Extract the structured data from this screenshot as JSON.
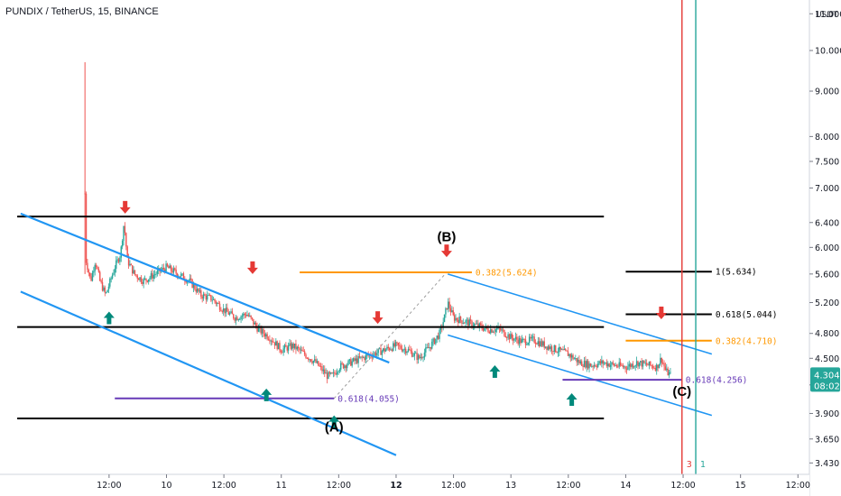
{
  "header": {
    "title": "PUNDIX / TetherUS, 15, BINANCE"
  },
  "axis": {
    "unit": "USDT"
  },
  "price_tag": {
    "value": "4.304",
    "countdown": "08:02",
    "color": "#26a69a"
  },
  "colors": {
    "level": "#000000",
    "channel": "#2196f3",
    "fib_orange": "#ff9800",
    "fib_purple": "#673ab7",
    "arrow_down": "#e53935",
    "arrow_up": "#00897b",
    "vline_red": "#e53935",
    "vline_teal": "#26a69a",
    "bull": "#26a69a",
    "bear": "#ef5350"
  },
  "chart_data": {
    "type": "candlestick",
    "symbol": "PUNDIX / TetherUS",
    "interval": "15",
    "exchange": "BINANCE",
    "yscale": "log",
    "ylim": [
      3.33,
      11.4
    ],
    "y_ticks": [
      "11.000",
      "10.000",
      "9.000",
      "8.000",
      "7.500",
      "7.000",
      "6.400",
      "6.000",
      "5.600",
      "5.200",
      "4.800",
      "4.500",
      "4.200",
      "3.900",
      "3.650",
      "3.430"
    ],
    "x_ticks": [
      {
        "label": "12:00",
        "t": 0.5,
        "bold": false
      },
      {
        "label": "10",
        "t": 1.0,
        "bold": false
      },
      {
        "label": "12:00",
        "t": 1.5,
        "bold": false
      },
      {
        "label": "11",
        "t": 2.0,
        "bold": false
      },
      {
        "label": "12:00",
        "t": 2.5,
        "bold": false
      },
      {
        "label": "12",
        "t": 3.0,
        "bold": true
      },
      {
        "label": "12:00",
        "t": 3.5,
        "bold": false
      },
      {
        "label": "13",
        "t": 4.0,
        "bold": false
      },
      {
        "label": "12:00",
        "t": 4.5,
        "bold": false
      },
      {
        "label": "14",
        "t": 5.0,
        "bold": false
      },
      {
        "label": "12:00",
        "t": 5.5,
        "bold": false
      },
      {
        "label": "15",
        "t": 6.0,
        "bold": false
      },
      {
        "label": "12:00",
        "t": 6.5,
        "bold": false
      }
    ],
    "xlim": [
      -0.45,
      6.6
    ],
    "price_path": [
      [
        0.29,
        6.9
      ],
      [
        0.3,
        5.8
      ],
      [
        0.34,
        5.5
      ],
      [
        0.38,
        5.8
      ],
      [
        0.42,
        5.5
      ],
      [
        0.47,
        5.3
      ],
      [
        0.55,
        5.7
      ],
      [
        0.6,
        5.9
      ],
      [
        0.63,
        6.4
      ],
      [
        0.66,
        5.8
      ],
      [
        0.72,
        5.6
      ],
      [
        0.8,
        5.5
      ],
      [
        0.9,
        5.6
      ],
      [
        1.0,
        5.7
      ],
      [
        1.1,
        5.6
      ],
      [
        1.2,
        5.5
      ],
      [
        1.3,
        5.3
      ],
      [
        1.4,
        5.25
      ],
      [
        1.5,
        5.1
      ],
      [
        1.6,
        5.0
      ],
      [
        1.7,
        5.05
      ],
      [
        1.75,
        4.95
      ],
      [
        1.8,
        4.85
      ],
      [
        1.9,
        4.75
      ],
      [
        2.0,
        4.6
      ],
      [
        2.1,
        4.65
      ],
      [
        2.2,
        4.55
      ],
      [
        2.3,
        4.45
      ],
      [
        2.4,
        4.3
      ],
      [
        2.45,
        4.3
      ],
      [
        2.5,
        4.4
      ],
      [
        2.6,
        4.45
      ],
      [
        2.7,
        4.5
      ],
      [
        2.8,
        4.55
      ],
      [
        2.9,
        4.6
      ],
      [
        3.0,
        4.65
      ],
      [
        3.05,
        4.62
      ],
      [
        3.1,
        4.6
      ],
      [
        3.15,
        4.55
      ],
      [
        3.2,
        4.5
      ],
      [
        3.3,
        4.65
      ],
      [
        3.38,
        4.8
      ],
      [
        3.42,
        5.0
      ],
      [
        3.45,
        5.2
      ],
      [
        3.5,
        5.0
      ],
      [
        3.6,
        4.95
      ],
      [
        3.7,
        4.9
      ],
      [
        3.8,
        4.85
      ],
      [
        3.9,
        4.85
      ],
      [
        4.0,
        4.75
      ],
      [
        4.1,
        4.7
      ],
      [
        4.2,
        4.72
      ],
      [
        4.3,
        4.65
      ],
      [
        4.4,
        4.6
      ],
      [
        4.5,
        4.55
      ],
      [
        4.6,
        4.45
      ],
      [
        4.7,
        4.42
      ],
      [
        4.8,
        4.45
      ],
      [
        4.9,
        4.42
      ],
      [
        5.0,
        4.4
      ],
      [
        5.1,
        4.45
      ],
      [
        5.2,
        4.42
      ],
      [
        5.27,
        4.4
      ],
      [
        5.31,
        4.5
      ],
      [
        5.35,
        4.35
      ],
      [
        5.4,
        4.3
      ]
    ],
    "wave_labels": [
      {
        "label": "(A)",
        "t": 2.46,
        "price": 3.72
      },
      {
        "label": "(B)",
        "t": 3.44,
        "price": 6.1
      },
      {
        "label": "(C)",
        "t": 5.49,
        "price": 4.08
      }
    ],
    "fib_levels": [
      {
        "label": "0.382(5.624)",
        "price": 5.624,
        "t_start": 2.16,
        "t_end": 3.66,
        "color": "orange"
      },
      {
        "label": "0.618(4.055)",
        "price": 4.055,
        "t_start": 0.55,
        "t_end": 2.46,
        "color": "purple"
      },
      {
        "label": "0.618(4.256)",
        "price": 4.256,
        "t_start": 4.45,
        "t_end": 5.49,
        "color": "purple"
      },
      {
        "label": "1(5.634)",
        "price": 5.634,
        "t_start": 5.0,
        "t_end": 5.75,
        "color": "black"
      },
      {
        "label": "0.618(5.044)",
        "price": 5.044,
        "t_start": 5.0,
        "t_end": 5.75,
        "color": "black"
      },
      {
        "label": "0.382(4.710)",
        "price": 4.71,
        "t_start": 5.0,
        "t_end": 5.75,
        "color": "orange"
      }
    ],
    "levels": [
      {
        "price": 6.5,
        "t_start": -0.3,
        "t_end": 4.81
      },
      {
        "price": 4.88,
        "t_start": -0.3,
        "t_end": 4.81
      },
      {
        "price": 3.85,
        "t_start": -0.3,
        "t_end": 4.81
      }
    ],
    "channels": [
      {
        "from": [
          -0.27,
          6.55
        ],
        "to": [
          2.94,
          4.45
        ]
      },
      {
        "from": [
          -0.27,
          5.35
        ],
        "to": [
          3.0,
          3.5
        ]
      },
      {
        "from": [
          3.45,
          5.6
        ],
        "to": [
          5.75,
          4.55
        ]
      },
      {
        "from": [
          3.45,
          4.78
        ],
        "to": [
          5.75,
          3.88
        ]
      }
    ],
    "dashed_lines": [
      {
        "from": [
          2.46,
          4.055
        ],
        "to": [
          3.44,
          5.624
        ]
      }
    ],
    "arrows_down": [
      {
        "t": 0.64,
        "price": 6.55
      },
      {
        "t": 1.75,
        "price": 5.6
      },
      {
        "t": 2.84,
        "price": 4.92
      },
      {
        "t": 3.44,
        "price": 5.85
      },
      {
        "t": 5.31,
        "price": 4.98
      }
    ],
    "arrows_up": [
      {
        "t": 0.5,
        "price": 5.08
      },
      {
        "t": 1.87,
        "price": 4.16
      },
      {
        "t": 2.46,
        "price": 3.88
      },
      {
        "t": 3.86,
        "price": 4.42
      },
      {
        "t": 4.53,
        "price": 4.11
      }
    ],
    "vlines": [
      {
        "t": 5.49,
        "label": "3",
        "color": "red"
      },
      {
        "t": 5.61,
        "label": "1",
        "color": "teal"
      }
    ]
  }
}
